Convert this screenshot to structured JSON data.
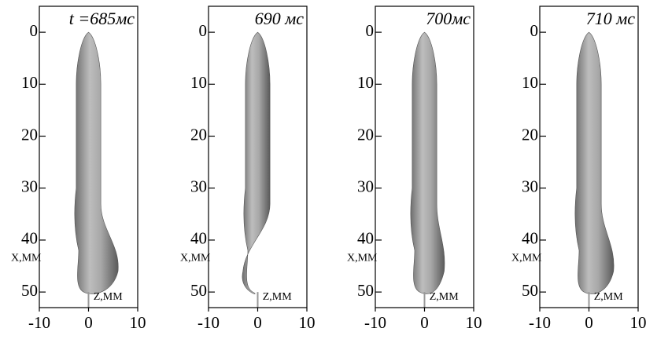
{
  "chart_data": [
    {
      "type": "render",
      "title": "t =685мс",
      "xlabel": "Z,ММ",
      "ylabel": "X,ММ",
      "xlim": [
        -10,
        10
      ],
      "ylim": [
        -5,
        53
      ],
      "xticks": [
        -10,
        0,
        10
      ],
      "yticks": [
        0,
        10,
        20,
        30,
        40,
        50
      ]
    },
    {
      "type": "render",
      "title": "690 мс",
      "xlabel": "Z,ММ",
      "ylabel": "X,ММ",
      "xlim": [
        -10,
        10
      ],
      "ylim": [
        -5,
        53
      ],
      "xticks": [
        -10,
        0,
        10
      ],
      "yticks": [
        0,
        10,
        20,
        30,
        40,
        50
      ]
    },
    {
      "type": "render",
      "title": "700мс",
      "xlabel": "Z,ММ",
      "ylabel": "X,ММ",
      "xlim": [
        -10,
        10
      ],
      "ylim": [
        -5,
        53
      ],
      "xticks": [
        -10,
        0,
        10
      ],
      "yticks": [
        0,
        10,
        20,
        30,
        40,
        50
      ]
    },
    {
      "type": "render",
      "title": "710 мс",
      "xlabel": "Z,ММ",
      "ylabel": "X,ММ",
      "xlim": [
        -10,
        10
      ],
      "ylim": [
        -5,
        53
      ],
      "xticks": [
        -10,
        0,
        10
      ],
      "yticks": [
        0,
        10,
        20,
        30,
        40,
        50
      ]
    }
  ]
}
